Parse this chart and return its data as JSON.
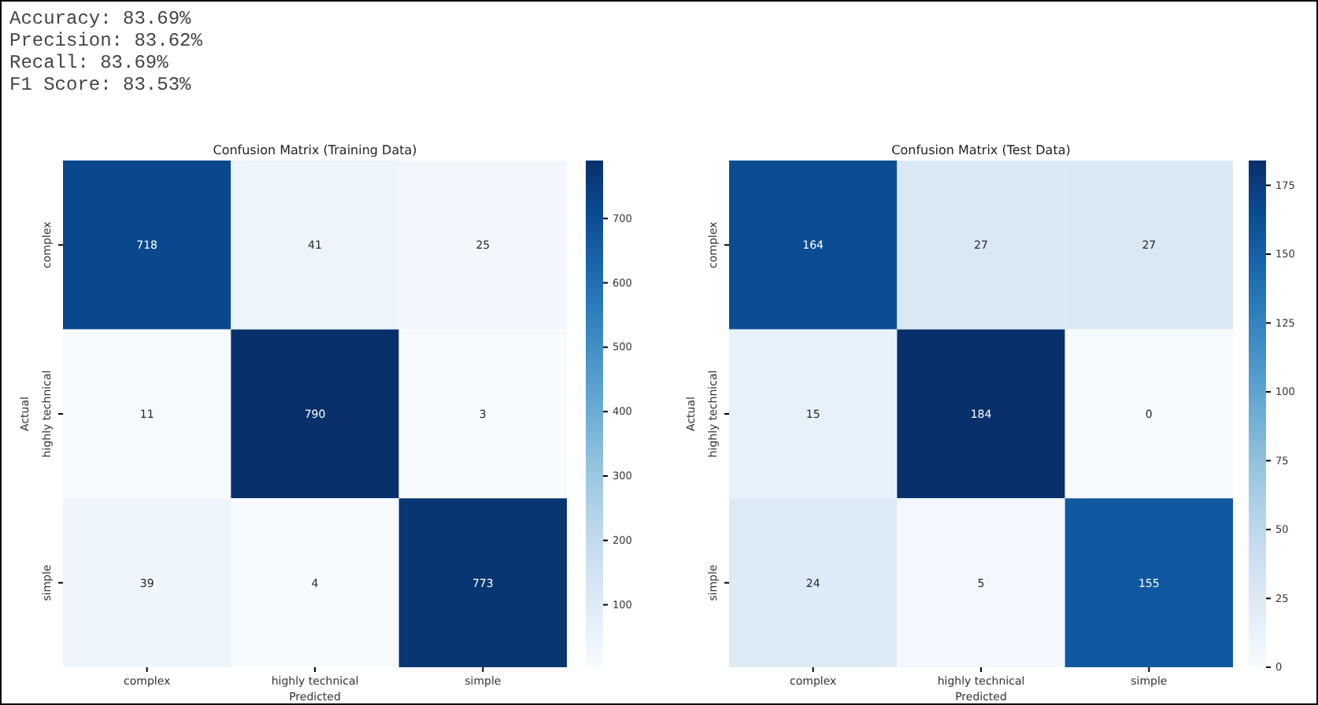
{
  "chart_data": [
    {
      "type": "heatmap",
      "title": "Confusion Matrix (Training Data)",
      "xlabel": "Predicted",
      "ylabel": "Actual",
      "annotations": [
        "Accuracy: 83.69%",
        "Precision: 83.62%",
        "Recall: 83.69%",
        "F1 Score: 83.53%"
      ],
      "categories": [
        "complex",
        "highly technical",
        "simple"
      ],
      "y_categories": [
        "complex",
        "highly technical",
        "simple"
      ],
      "cells": [
        [
          718,
          41,
          25
        ],
        [
          11,
          790,
          3
        ],
        [
          39,
          4,
          773
        ]
      ],
      "clim": [
        3,
        790
      ],
      "cticks": [
        100,
        200,
        300,
        400,
        500,
        600,
        700
      ],
      "data_labels": true
    },
    {
      "type": "heatmap",
      "title": "Confusion Matrix (Test Data)",
      "xlabel": "Predicted",
      "ylabel": "Actual",
      "categories": [
        "complex",
        "highly technical",
        "simple"
      ],
      "y_categories": [
        "complex",
        "highly technical",
        "simple"
      ],
      "cells": [
        [
          164,
          27,
          27
        ],
        [
          15,
          184,
          0
        ],
        [
          24,
          5,
          155
        ]
      ],
      "clim": [
        0,
        184
      ],
      "cticks": [
        0,
        25,
        50,
        75,
        100,
        125,
        150,
        175
      ],
      "data_labels": true
    }
  ]
}
